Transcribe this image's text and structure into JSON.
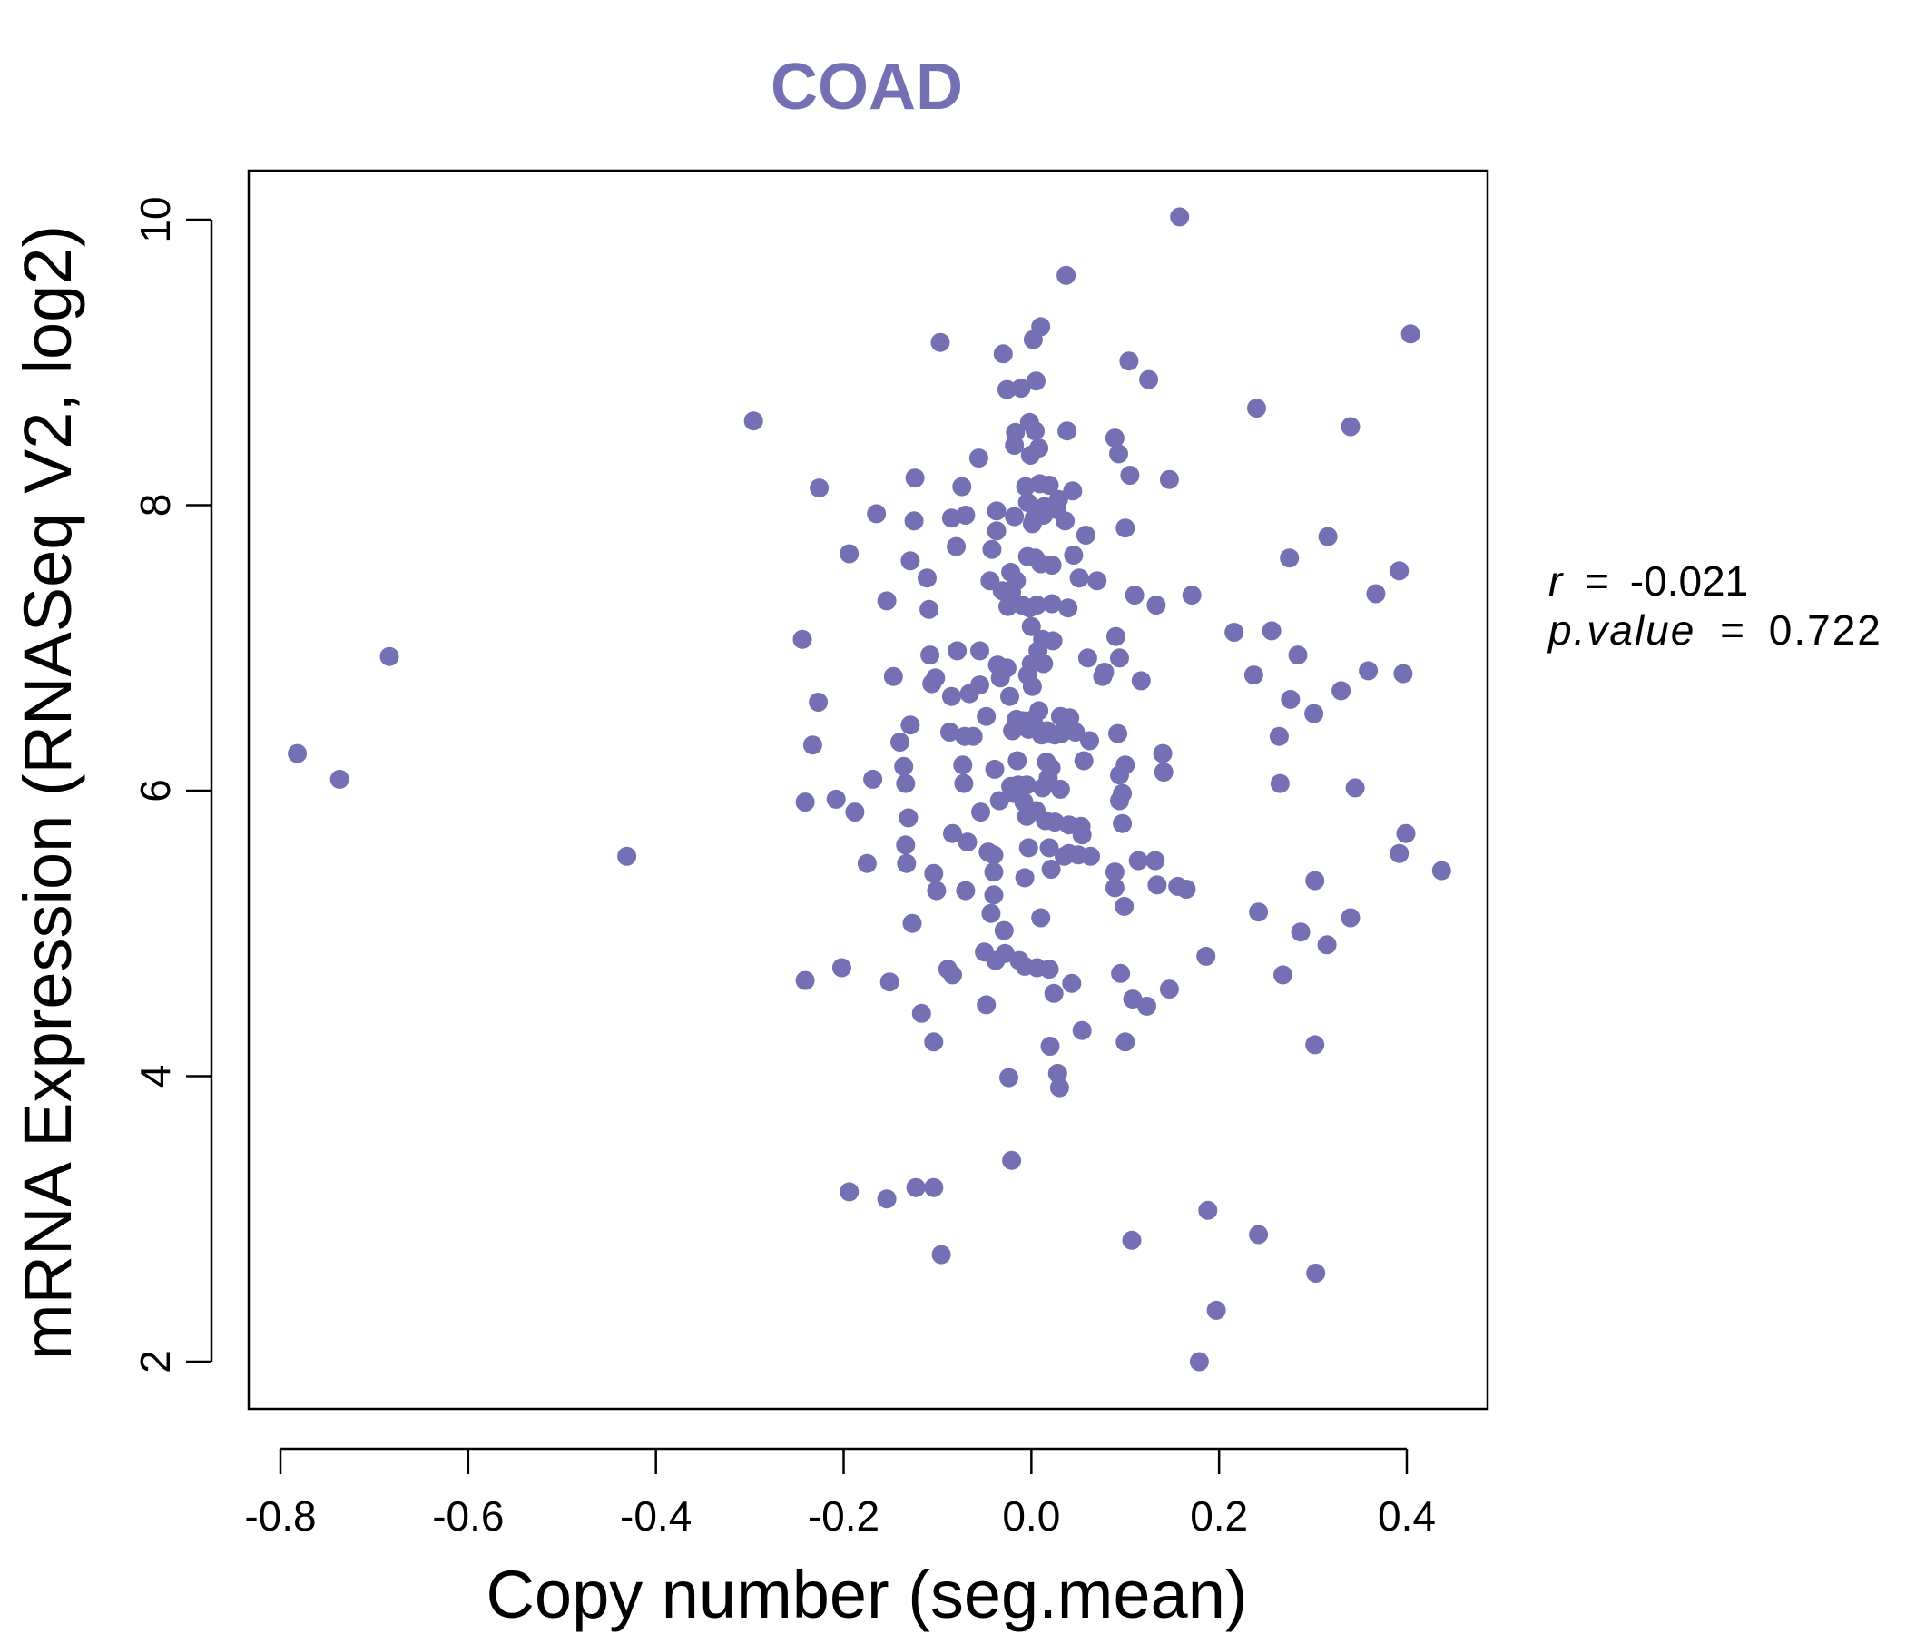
{
  "colors": {
    "accent": "#7570B3",
    "axis": "#000000",
    "background": "#FFFFFF"
  },
  "stats": {
    "r_label": "r",
    "r_value": "-0.021",
    "p_label": "p.value",
    "p_value": "0.722"
  },
  "chart_data": {
    "type": "scatter",
    "title": "COAD",
    "xlabel": "Copy number (seg.mean)",
    "ylabel": "mRNA Expression (RNASeq V2, log2)",
    "xlim": [
      -0.8,
      0.4
    ],
    "ylim": [
      2,
      10
    ],
    "xticks": [
      -0.8,
      -0.6,
      -0.4,
      -0.2,
      0.0,
      0.2,
      0.4
    ],
    "xtick_labels": [
      "-0.8",
      "-0.6",
      "-0.4",
      "-0.2",
      "0.0",
      "0.2",
      "0.4"
    ],
    "yticks": [
      2,
      4,
      6,
      8,
      10
    ],
    "ytick_labels": [
      "2",
      "4",
      "6",
      "8",
      "10"
    ],
    "grid": false,
    "legend": "none",
    "points": [
      [
        -0.782,
        6.26
      ],
      [
        -0.737,
        6.08
      ],
      [
        -0.684,
        6.94
      ],
      [
        -0.431,
        5.54
      ],
      [
        -0.296,
        8.59
      ],
      [
        -0.244,
        7.06
      ],
      [
        -0.241,
        5.92
      ],
      [
        -0.241,
        4.67
      ],
      [
        -0.233,
        6.32
      ],
      [
        -0.227,
        6.62
      ],
      [
        -0.226,
        8.12
      ],
      [
        -0.208,
        5.94
      ],
      [
        -0.202,
        4.76
      ],
      [
        -0.194,
        7.66
      ],
      [
        -0.194,
        3.19
      ],
      [
        -0.188,
        5.85
      ],
      [
        -0.175,
        5.49
      ],
      [
        -0.169,
        6.08
      ],
      [
        -0.165,
        7.94
      ],
      [
        -0.154,
        7.33
      ],
      [
        -0.154,
        3.14
      ],
      [
        -0.151,
        4.66
      ],
      [
        -0.147,
        6.8
      ],
      [
        -0.14,
        6.34
      ],
      [
        -0.136,
        6.17
      ],
      [
        -0.134,
        6.05
      ],
      [
        -0.134,
        5.62
      ],
      [
        -0.133,
        5.49
      ],
      [
        -0.131,
        5.81
      ],
      [
        -0.129,
        7.61
      ],
      [
        -0.129,
        6.46
      ],
      [
        -0.127,
        5.07
      ],
      [
        -0.125,
        7.89
      ],
      [
        -0.124,
        8.19
      ],
      [
        -0.123,
        3.22
      ],
      [
        -0.117,
        4.44
      ],
      [
        -0.111,
        7.49
      ],
      [
        -0.109,
        7.27
      ],
      [
        -0.108,
        6.95
      ],
      [
        -0.106,
        6.75
      ],
      [
        -0.104,
        5.42
      ],
      [
        -0.104,
        4.24
      ],
      [
        -0.102,
        6.79
      ],
      [
        -0.101,
        5.3
      ],
      [
        -0.104,
        3.22
      ],
      [
        -0.097,
        9.14
      ],
      [
        -0.096,
        2.75
      ],
      [
        -0.089,
        4.75
      ],
      [
        -0.087,
        6.41
      ],
      [
        -0.085,
        7.91
      ],
      [
        -0.085,
        6.66
      ],
      [
        -0.084,
        5.7
      ],
      [
        -0.084,
        4.71
      ],
      [
        -0.08,
        7.71
      ],
      [
        -0.079,
        6.98
      ],
      [
        -0.074,
        8.13
      ],
      [
        -0.073,
        6.18
      ],
      [
        -0.072,
        6.05
      ],
      [
        -0.071,
        6.38
      ],
      [
        -0.07,
        7.93
      ],
      [
        -0.07,
        5.3
      ],
      [
        -0.068,
        5.64
      ],
      [
        -0.066,
        6.68
      ],
      [
        -0.062,
        6.38
      ],
      [
        -0.056,
        8.33
      ],
      [
        -0.055,
        6.98
      ],
      [
        -0.055,
        6.74
      ],
      [
        -0.054,
        5.85
      ],
      [
        -0.05,
        4.87
      ],
      [
        -0.048,
        4.5
      ],
      [
        -0.048,
        6.52
      ],
      [
        -0.046,
        5.57
      ],
      [
        -0.044,
        7.47
      ],
      [
        -0.043,
        5.14
      ],
      [
        -0.042,
        7.69
      ],
      [
        -0.04,
        5.55
      ],
      [
        -0.04,
        5.43
      ],
      [
        -0.04,
        5.27
      ],
      [
        -0.039,
        6.15
      ],
      [
        -0.038,
        4.81
      ],
      [
        -0.037,
        7.82
      ],
      [
        -0.037,
        7.96
      ],
      [
        -0.036,
        6.88
      ],
      [
        -0.034,
        5.93
      ],
      [
        -0.033,
        6.79
      ],
      [
        -0.031,
        7.4
      ],
      [
        -0.03,
        9.06
      ],
      [
        -0.029,
        5.02
      ],
      [
        -0.028,
        4.86
      ],
      [
        -0.026,
        6.86
      ],
      [
        -0.026,
        8.81
      ],
      [
        -0.025,
        7.29
      ],
      [
        -0.024,
        3.99
      ],
      [
        -0.023,
        6.66
      ],
      [
        -0.022,
        7.53
      ],
      [
        -0.022,
        6.03
      ],
      [
        -0.021,
        7.39
      ],
      [
        -0.021,
        3.41
      ],
      [
        -0.02,
        6.42
      ],
      [
        -0.019,
        5.98
      ],
      [
        -0.018,
        8.42
      ],
      [
        -0.018,
        7.92
      ],
      [
        -0.017,
        8.51
      ],
      [
        -0.016,
        7.47
      ],
      [
        -0.016,
        6.5
      ],
      [
        -0.015,
        6.21
      ],
      [
        -0.014,
        6.04
      ],
      [
        -0.013,
        4.81
      ],
      [
        -0.011,
        8.82
      ],
      [
        -0.01,
        7.3
      ],
      [
        -0.009,
        6.49
      ],
      [
        -0.008,
        5.92
      ],
      [
        -0.007,
        5.39
      ],
      [
        -0.007,
        4.77
      ],
      [
        -0.006,
        8.13
      ],
      [
        -0.005,
        5.82
      ],
      [
        -0.005,
        6.04
      ],
      [
        -0.004,
        6.81
      ],
      [
        -0.004,
        7.64
      ],
      [
        -0.004,
        8.02
      ],
      [
        -0.003,
        5.6
      ],
      [
        -0.003,
        6.43
      ],
      [
        -0.002,
        7.28
      ],
      [
        -0.002,
        8.58
      ],
      [
        -0.001,
        8.35
      ],
      [
        0.0,
        6.89
      ],
      [
        0.0,
        7.15
      ],
      [
        0.001,
        6.73
      ],
      [
        0.001,
        7.87
      ],
      [
        0.002,
        6.5
      ],
      [
        0.002,
        9.16
      ],
      [
        0.003,
        7.91
      ],
      [
        0.004,
        8.52
      ],
      [
        0.004,
        7.63
      ],
      [
        0.005,
        6.44
      ],
      [
        0.005,
        5.86
      ],
      [
        0.005,
        8.87
      ],
      [
        0.006,
        4.76
      ],
      [
        0.006,
        7.3
      ],
      [
        0.007,
        6.98
      ],
      [
        0.008,
        6.56
      ],
      [
        0.008,
        8.4
      ],
      [
        0.009,
        8.15
      ],
      [
        0.01,
        7.59
      ],
      [
        0.01,
        5.11
      ],
      [
        0.01,
        9.25
      ],
      [
        0.011,
        6.39
      ],
      [
        0.012,
        7.06
      ],
      [
        0.012,
        6.02
      ],
      [
        0.013,
        7.93
      ],
      [
        0.013,
        6.89
      ],
      [
        0.014,
        7.99
      ],
      [
        0.015,
        5.79
      ],
      [
        0.016,
        6.2
      ],
      [
        0.017,
        6.42
      ],
      [
        0.018,
        6.09
      ],
      [
        0.019,
        5.6
      ],
      [
        0.019,
        8.14
      ],
      [
        0.019,
        4.75
      ],
      [
        0.02,
        4.21
      ],
      [
        0.021,
        6.16
      ],
      [
        0.021,
        5.45
      ],
      [
        0.022,
        7.58
      ],
      [
        0.022,
        7.31
      ],
      [
        0.023,
        7.05
      ],
      [
        0.024,
        4.58
      ],
      [
        0.025,
        6.39
      ],
      [
        0.025,
        5.78
      ],
      [
        0.027,
        7.97
      ],
      [
        0.028,
        4.02
      ],
      [
        0.029,
        8.04
      ],
      [
        0.03,
        3.92
      ],
      [
        0.031,
        6.01
      ],
      [
        0.031,
        6.52
      ],
      [
        0.032,
        6.4
      ],
      [
        0.035,
        5.54
      ],
      [
        0.036,
        7.89
      ],
      [
        0.037,
        9.61
      ],
      [
        0.038,
        8.52
      ],
      [
        0.039,
        7.28
      ],
      [
        0.04,
        5.76
      ],
      [
        0.04,
        5.56
      ],
      [
        0.041,
        6.51
      ],
      [
        0.043,
        4.65
      ],
      [
        0.044,
        8.1
      ],
      [
        0.045,
        7.65
      ],
      [
        0.047,
        6.41
      ],
      [
        0.05,
        5.55
      ],
      [
        0.051,
        7.49
      ],
      [
        0.053,
        5.75
      ],
      [
        0.054,
        5.69
      ],
      [
        0.054,
        4.32
      ],
      [
        0.056,
        6.21
      ],
      [
        0.058,
        7.79
      ],
      [
        0.06,
        6.93
      ],
      [
        0.062,
        6.35
      ],
      [
        0.063,
        5.54
      ],
      [
        0.07,
        7.47
      ],
      [
        0.076,
        6.8
      ],
      [
        0.078,
        6.83
      ],
      [
        0.089,
        8.47
      ],
      [
        0.089,
        5.43
      ],
      [
        0.089,
        5.32
      ],
      [
        0.09,
        7.08
      ],
      [
        0.092,
        6.4
      ],
      [
        0.093,
        8.36
      ],
      [
        0.094,
        6.93
      ],
      [
        0.094,
        5.93
      ],
      [
        0.094,
        6.11
      ],
      [
        0.095,
        4.72
      ],
      [
        0.097,
        5.98
      ],
      [
        0.097,
        5.77
      ],
      [
        0.099,
        5.19
      ],
      [
        0.1,
        7.84
      ],
      [
        0.1,
        6.18
      ],
      [
        0.1,
        4.24
      ],
      [
        0.104,
        9.01
      ],
      [
        0.105,
        8.21
      ],
      [
        0.107,
        2.85
      ],
      [
        0.108,
        4.54
      ],
      [
        0.11,
        7.37
      ],
      [
        0.114,
        5.51
      ],
      [
        0.117,
        6.77
      ],
      [
        0.123,
        4.49
      ],
      [
        0.125,
        8.88
      ],
      [
        0.132,
        5.51
      ],
      [
        0.133,
        7.3
      ],
      [
        0.134,
        5.34
      ],
      [
        0.14,
        6.26
      ],
      [
        0.141,
        6.13
      ],
      [
        0.147,
        8.18
      ],
      [
        0.147,
        4.61
      ],
      [
        0.156,
        5.33
      ],
      [
        0.158,
        10.02
      ],
      [
        0.165,
        5.31
      ],
      [
        0.171,
        7.37
      ],
      [
        0.179,
        2.0
      ],
      [
        0.186,
        4.84
      ],
      [
        0.188,
        3.06
      ],
      [
        0.197,
        2.36
      ],
      [
        0.216,
        7.11
      ],
      [
        0.237,
        6.81
      ],
      [
        0.24,
        8.68
      ],
      [
        0.242,
        5.15
      ],
      [
        0.242,
        2.89
      ],
      [
        0.256,
        7.12
      ],
      [
        0.264,
        6.38
      ],
      [
        0.265,
        6.05
      ],
      [
        0.268,
        4.71
      ],
      [
        0.275,
        7.63
      ],
      [
        0.276,
        6.64
      ],
      [
        0.284,
        6.95
      ],
      [
        0.287,
        5.01
      ],
      [
        0.301,
        6.54
      ],
      [
        0.302,
        5.37
      ],
      [
        0.302,
        4.22
      ],
      [
        0.303,
        2.62
      ],
      [
        0.315,
        4.92
      ],
      [
        0.316,
        7.78
      ],
      [
        0.33,
        6.7
      ],
      [
        0.34,
        8.55
      ],
      [
        0.34,
        5.11
      ],
      [
        0.345,
        6.02
      ],
      [
        0.359,
        6.84
      ],
      [
        0.367,
        7.38
      ],
      [
        0.392,
        7.54
      ],
      [
        0.392,
        5.56
      ],
      [
        0.396,
        6.82
      ],
      [
        0.399,
        5.7
      ],
      [
        0.404,
        9.2
      ],
      [
        0.437,
        5.44
      ]
    ]
  }
}
